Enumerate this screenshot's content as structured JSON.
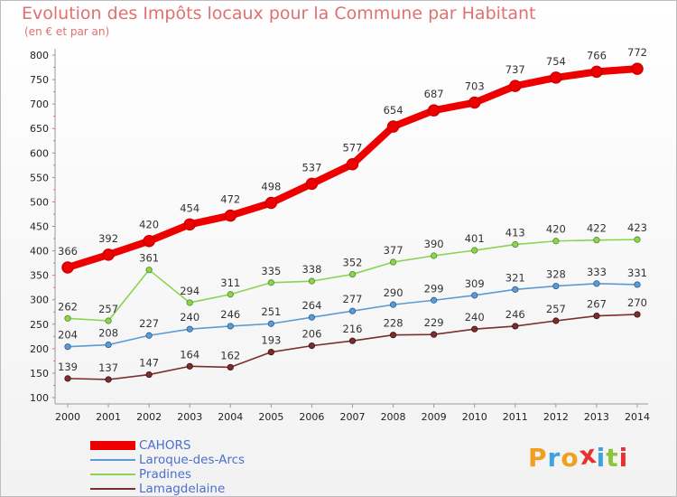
{
  "header": {
    "title": "Evolution des Impôts locaux pour la Commune par Habitant",
    "subtitle": "(en € et par an)"
  },
  "logo": {
    "letters": [
      "P",
      "r",
      "o",
      "x",
      "i",
      "t",
      "i"
    ],
    "colors": [
      "#f0a020",
      "#3fa2dd",
      "#f0a020",
      "#e83030",
      "#3fa2dd",
      "#8cc63f",
      "#e83030"
    ]
  },
  "chart_data": {
    "type": "line",
    "title": "Evolution des Impôts locaux pour la Commune par Habitant",
    "subtitle": "(en € et par an)",
    "xlabel": "",
    "ylabel": "",
    "x": [
      "2000",
      "2001",
      "2002",
      "2003",
      "2004",
      "2005",
      "2006",
      "2007",
      "2008",
      "2009",
      "2010",
      "2011",
      "2012",
      "2013",
      "2014"
    ],
    "ylim": [
      100,
      800
    ],
    "yticks": [
      "100",
      "150",
      "200",
      "250",
      "300",
      "350",
      "400",
      "450",
      "500",
      "550",
      "600",
      "650",
      "700",
      "750",
      "800"
    ],
    "grid": false,
    "legend_position": "bottom-left",
    "series": [
      {
        "name": "CAHORS",
        "color": "#ee0000",
        "values": [
          366,
          392,
          420,
          454,
          472,
          498,
          537,
          577,
          654,
          687,
          703,
          737,
          754,
          766,
          772
        ]
      },
      {
        "name": "Laroque-des-Arcs",
        "color": "#5b9bd5",
        "values": [
          204,
          208,
          227,
          240,
          246,
          251,
          264,
          277,
          290,
          299,
          309,
          321,
          328,
          333,
          331
        ]
      },
      {
        "name": "Pradines",
        "color": "#8cd450",
        "values": [
          262,
          257,
          361,
          294,
          311,
          335,
          338,
          352,
          377,
          390,
          401,
          413,
          420,
          422,
          423
        ]
      },
      {
        "name": "Lamagdelaine",
        "color": "#7a2e2e",
        "values": [
          139,
          137,
          147,
          164,
          162,
          193,
          206,
          216,
          228,
          229,
          240,
          246,
          257,
          267,
          270
        ]
      }
    ]
  }
}
